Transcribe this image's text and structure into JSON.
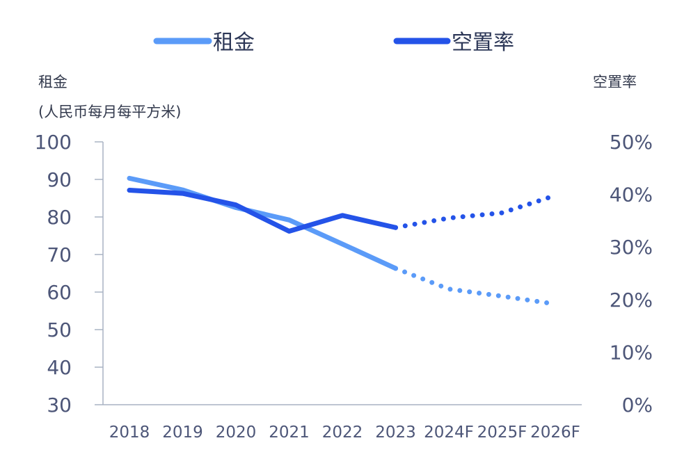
{
  "chart_data": {
    "type": "line",
    "categories": [
      "2018",
      "2019",
      "2020",
      "2021",
      "2022",
      "2023",
      "2024F",
      "2025F",
      "2026F"
    ],
    "forecast_start_index": 5,
    "series": [
      {
        "name": "租金",
        "axis": "left",
        "color": "#5b9bf8",
        "values": [
          90.3,
          87.2,
          82.5,
          79.2,
          72.8,
          66.3,
          60.8,
          58.9,
          56.8
        ]
      },
      {
        "name": "空置率",
        "axis": "right",
        "color": "#2453e8",
        "values": [
          40.8,
          40.2,
          38.0,
          33.0,
          36.0,
          33.7,
          35.5,
          36.5,
          39.8
        ]
      }
    ],
    "y_left": {
      "title_line1": "租金",
      "title_line2": "(人民币每月每平方米)",
      "range": [
        30,
        100
      ],
      "ticks": [
        "100",
        "90",
        "80",
        "70",
        "60",
        "50",
        "40",
        "30"
      ]
    },
    "y_right": {
      "title": "空置率",
      "range": [
        0,
        50
      ],
      "ticks": [
        "50%",
        "40%",
        "30%",
        "20%",
        "10%",
        "0%"
      ]
    },
    "legend": {
      "placement": "top"
    },
    "grid": false
  }
}
